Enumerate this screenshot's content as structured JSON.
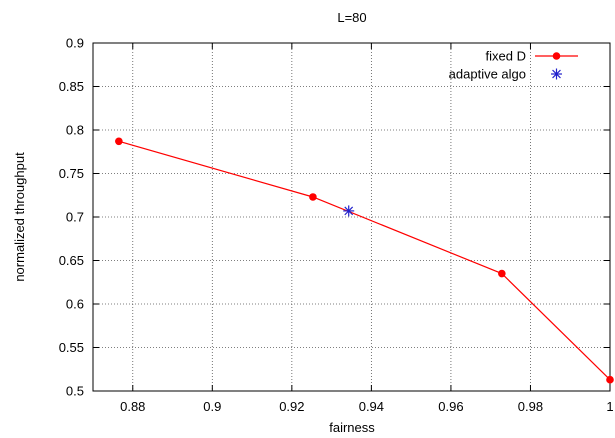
{
  "chart_data": {
    "type": "line",
    "title": "L=80",
    "xlabel": "fairness",
    "ylabel": "normalized throughput",
    "xlim": [
      0.87,
      1.0
    ],
    "ylim": [
      0.5,
      0.9
    ],
    "x_ticks": [
      0.88,
      0.9,
      0.92,
      0.94,
      0.96,
      0.98,
      1.0
    ],
    "x_tick_labels": [
      "0.88",
      "0.9",
      "0.92",
      "0.94",
      "0.96",
      "0.98",
      "1"
    ],
    "y_ticks": [
      0.5,
      0.55,
      0.6,
      0.65,
      0.7,
      0.75,
      0.8,
      0.85,
      0.9
    ],
    "y_tick_labels": [
      "0.5",
      "0.55",
      "0.6",
      "0.65",
      "0.7",
      "0.75",
      "0.8",
      "0.85",
      "0.9"
    ],
    "grid": true,
    "legend_position": "top-right",
    "series": [
      {
        "name": "fixed D",
        "color": "#ff0000",
        "marker": "circle",
        "line": true,
        "points": [
          {
            "x": 0.8765,
            "y": 0.787
          },
          {
            "x": 0.9253,
            "y": 0.723
          },
          {
            "x": 0.9728,
            "y": 0.635
          },
          {
            "x": 1.0,
            "y": 0.513
          }
        ]
      },
      {
        "name": "adaptive algo",
        "color": "#2222cc",
        "marker": "asterisk",
        "line": false,
        "points": [
          {
            "x": 0.9343,
            "y": 0.707
          }
        ]
      }
    ]
  }
}
